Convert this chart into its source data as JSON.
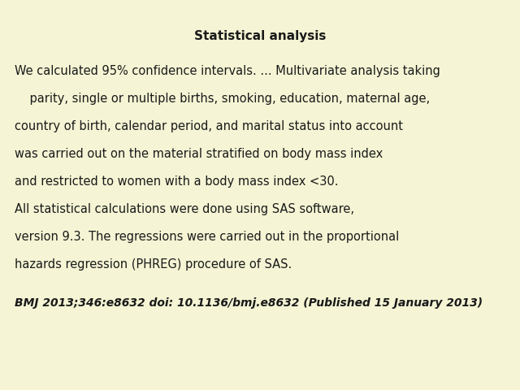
{
  "background_color": "#f5f5d5",
  "title": "Statistical analysis",
  "title_fontsize": 11,
  "title_color": "#1a1a1a",
  "body_lines": [
    "We calculated 95% confidence intervals. ... Multivariate analysis taking",
    "    parity, single or multiple births, smoking, education, maternal age,",
    "country of birth, calendar period, and marital status into account",
    "was carried out on the material stratified on body mass index",
    "and restricted to women with a body mass index <30.",
    "All statistical calculations were done using SAS software,",
    "version 9.3. The regressions were carried out in the proportional",
    "hazards regression (PHREG) procedure of SAS."
  ],
  "body_fontsize": 10.5,
  "body_color": "#1a1a1a",
  "citation": "BMJ 2013;346:e8632 doi: 10.1136/bmj.e8632 (Published 15 January 2013)",
  "citation_fontsize": 10,
  "citation_color": "#1a1a1a"
}
